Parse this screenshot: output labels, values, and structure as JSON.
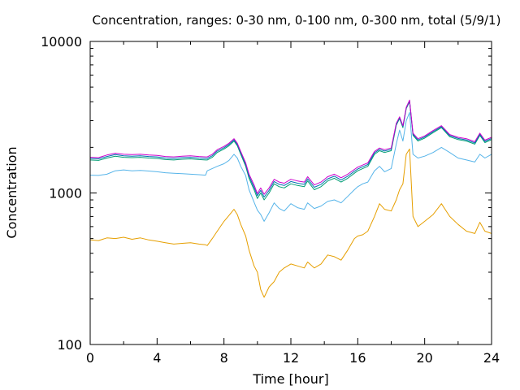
{
  "chart_data": {
    "type": "line",
    "title": "Concentration, ranges: 0-30 nm, 0-100 nm, 0-300 nm, total (5/9/1)",
    "xlabel": "Time [hour]",
    "ylabel": "Concentration",
    "xlim": [
      0,
      24
    ],
    "ylim": [
      100,
      10000
    ],
    "yscale": "log",
    "grid": false,
    "legend": "none",
    "x_ticks": [
      "0",
      "4",
      "8",
      "12",
      "16",
      "20",
      "24"
    ],
    "y_ticks": [
      "100",
      "1000",
      "10000"
    ],
    "series": [
      {
        "color": "#e69f00",
        "x": [
          0,
          0.5,
          1,
          1.5,
          2,
          2.5,
          3,
          3.5,
          4,
          4.5,
          5,
          5.5,
          6,
          6.5,
          6.9,
          7.0,
          7.3,
          7.6,
          8.0,
          8.3,
          8.6,
          8.8,
          9.0,
          9.3,
          9.5,
          9.8,
          10.0,
          10.2,
          10.4,
          10.7,
          11.0,
          11.3,
          11.6,
          12.0,
          12.4,
          12.8,
          13.0,
          13.4,
          13.8,
          14.2,
          14.6,
          15.0,
          15.4,
          15.8,
          16.0,
          16.3,
          16.6,
          17.0,
          17.3,
          17.6,
          18.0,
          18.3,
          18.5,
          18.7,
          18.9,
          19.1,
          19.3,
          19.6,
          20.0,
          20.5,
          21.0,
          21.5,
          22.0,
          22.5,
          23.0,
          23.3,
          23.6,
          24.0
        ],
        "values": [
          490,
          485,
          505,
          500,
          510,
          495,
          505,
          490,
          480,
          470,
          460,
          465,
          470,
          460,
          455,
          450,
          500,
          560,
          650,
          710,
          780,
          720,
          620,
          520,
          420,
          330,
          300,
          230,
          205,
          240,
          260,
          300,
          320,
          340,
          330,
          320,
          350,
          320,
          340,
          390,
          380,
          360,
          420,
          500,
          520,
          530,
          560,
          700,
          850,
          780,
          760,
          900,
          1050,
          1150,
          1800,
          1950,
          700,
          600,
          650,
          720,
          850,
          700,
          620,
          560,
          540,
          640,
          560,
          540
        ]
      },
      {
        "color": "#56b4e9",
        "x": [
          0,
          0.5,
          1,
          1.5,
          2,
          2.5,
          3,
          3.5,
          4,
          4.5,
          5,
          5.5,
          6,
          6.5,
          6.9,
          7.0,
          7.3,
          7.6,
          8.0,
          8.3,
          8.6,
          8.8,
          9.0,
          9.3,
          9.5,
          9.8,
          10.0,
          10.2,
          10.4,
          10.7,
          11.0,
          11.3,
          11.6,
          12.0,
          12.4,
          12.8,
          13.0,
          13.4,
          13.8,
          14.2,
          14.6,
          15.0,
          15.4,
          15.8,
          16.0,
          16.3,
          16.6,
          17.0,
          17.3,
          17.6,
          18.0,
          18.3,
          18.5,
          18.7,
          18.9,
          19.1,
          19.3,
          19.6,
          20.0,
          20.5,
          21.0,
          21.5,
          22.0,
          22.5,
          23.0,
          23.3,
          23.6,
          24.0
        ],
        "values": [
          1310,
          1305,
          1330,
          1400,
          1420,
          1400,
          1410,
          1395,
          1380,
          1360,
          1350,
          1340,
          1330,
          1320,
          1310,
          1400,
          1450,
          1500,
          1560,
          1640,
          1800,
          1700,
          1500,
          1300,
          1050,
          870,
          770,
          720,
          650,
          740,
          860,
          790,
          760,
          850,
          800,
          780,
          860,
          790,
          820,
          880,
          900,
          860,
          950,
          1050,
          1100,
          1150,
          1180,
          1400,
          1500,
          1380,
          1450,
          2100,
          2600,
          2200,
          3000,
          3400,
          1800,
          1700,
          1750,
          1850,
          2000,
          1850,
          1700,
          1650,
          1600,
          1800,
          1700,
          1800
        ]
      },
      {
        "color": "#009e73",
        "x": [
          0,
          0.5,
          1,
          1.5,
          2,
          2.5,
          3,
          3.5,
          4,
          4.5,
          5,
          5.5,
          6,
          6.5,
          6.9,
          7.0,
          7.3,
          7.6,
          8.0,
          8.3,
          8.6,
          8.8,
          9.0,
          9.3,
          9.5,
          9.8,
          10.0,
          10.2,
          10.4,
          10.7,
          11.0,
          11.3,
          11.6,
          12.0,
          12.4,
          12.8,
          13.0,
          13.4,
          13.8,
          14.2,
          14.6,
          15.0,
          15.4,
          15.8,
          16.0,
          16.3,
          16.6,
          17.0,
          17.3,
          17.6,
          18.0,
          18.3,
          18.5,
          18.7,
          18.9,
          19.1,
          19.3,
          19.6,
          20.0,
          20.5,
          21.0,
          21.5,
          22.0,
          22.5,
          23.0,
          23.3,
          23.6,
          24.0
        ],
        "values": [
          1650,
          1640,
          1700,
          1750,
          1720,
          1710,
          1720,
          1700,
          1690,
          1660,
          1650,
          1670,
          1680,
          1660,
          1650,
          1650,
          1720,
          1850,
          1950,
          2050,
          2200,
          2050,
          1800,
          1500,
          1250,
          1050,
          920,
          1000,
          900,
          1000,
          1150,
          1100,
          1080,
          1150,
          1120,
          1100,
          1200,
          1050,
          1100,
          1200,
          1250,
          1180,
          1250,
          1350,
          1400,
          1450,
          1500,
          1800,
          1900,
          1850,
          1900,
          2800,
          3100,
          2700,
          3600,
          4000,
          2400,
          2200,
          2300,
          2500,
          2700,
          2350,
          2250,
          2200,
          2100,
          2400,
          2150,
          2250
        ]
      },
      {
        "color": "#0072b2",
        "x": [
          0,
          0.5,
          1,
          1.5,
          2,
          2.5,
          3,
          3.5,
          4,
          4.5,
          5,
          5.5,
          6,
          6.5,
          6.9,
          7.0,
          7.3,
          7.6,
          8.0,
          8.3,
          8.6,
          8.8,
          9.0,
          9.3,
          9.5,
          9.8,
          10.0,
          10.2,
          10.4,
          10.7,
          11.0,
          11.3,
          11.6,
          12.0,
          12.4,
          12.8,
          13.0,
          13.4,
          13.8,
          14.2,
          14.6,
          15.0,
          15.4,
          15.8,
          16.0,
          16.3,
          16.6,
          17.0,
          17.3,
          17.6,
          18.0,
          18.3,
          18.5,
          18.7,
          18.9,
          19.1,
          19.3,
          19.6,
          20.0,
          20.5,
          21.0,
          21.5,
          22.0,
          22.5,
          23.0,
          23.3,
          23.6,
          24.0
        ],
        "values": [
          1690,
          1680,
          1740,
          1790,
          1760,
          1750,
          1760,
          1740,
          1730,
          1700,
          1690,
          1710,
          1720,
          1700,
          1690,
          1690,
          1760,
          1890,
          1990,
          2090,
          2240,
          2090,
          1840,
          1540,
          1290,
          1090,
          960,
          1040,
          940,
          1040,
          1190,
          1140,
          1120,
          1190,
          1160,
          1140,
          1240,
          1090,
          1140,
          1240,
          1290,
          1220,
          1290,
          1390,
          1440,
          1490,
          1540,
          1840,
          1940,
          1890,
          1940,
          2840,
          3140,
          2740,
          3640,
          4050,
          2440,
          2240,
          2340,
          2540,
          2740,
          2390,
          2290,
          2240,
          2140,
          2440,
          2190,
          2290
        ]
      },
      {
        "color": "#cc00cc",
        "x": [
          0,
          0.5,
          1,
          1.5,
          2,
          2.5,
          3,
          3.5,
          4,
          4.5,
          5,
          5.5,
          6,
          6.5,
          6.9,
          7.0,
          7.3,
          7.6,
          8.0,
          8.3,
          8.6,
          8.8,
          9.0,
          9.3,
          9.5,
          9.8,
          10.0,
          10.2,
          10.4,
          10.7,
          11.0,
          11.3,
          11.6,
          12.0,
          12.4,
          12.8,
          13.0,
          13.4,
          13.8,
          14.2,
          14.6,
          15.0,
          15.4,
          15.8,
          16.0,
          16.3,
          16.6,
          17.0,
          17.3,
          17.6,
          18.0,
          18.3,
          18.5,
          18.7,
          18.9,
          19.1,
          19.3,
          19.6,
          20.0,
          20.5,
          21.0,
          21.5,
          22.0,
          22.5,
          23.0,
          23.3,
          23.6,
          24.0
        ],
        "values": [
          1720,
          1710,
          1780,
          1830,
          1800,
          1790,
          1800,
          1780,
          1770,
          1740,
          1730,
          1750,
          1760,
          1740,
          1730,
          1730,
          1800,
          1930,
          2030,
          2130,
          2280,
          2130,
          1880,
          1580,
          1330,
          1130,
          990,
          1080,
          980,
          1080,
          1230,
          1180,
          1160,
          1230,
          1200,
          1180,
          1280,
          1130,
          1180,
          1280,
          1330,
          1260,
          1330,
          1430,
          1480,
          1530,
          1580,
          1880,
          1980,
          1930,
          1980,
          2880,
          3180,
          2780,
          3680,
          4100,
          2480,
          2280,
          2380,
          2580,
          2780,
          2430,
          2330,
          2280,
          2180,
          2480,
          2230,
          2330
        ]
      }
    ]
  }
}
